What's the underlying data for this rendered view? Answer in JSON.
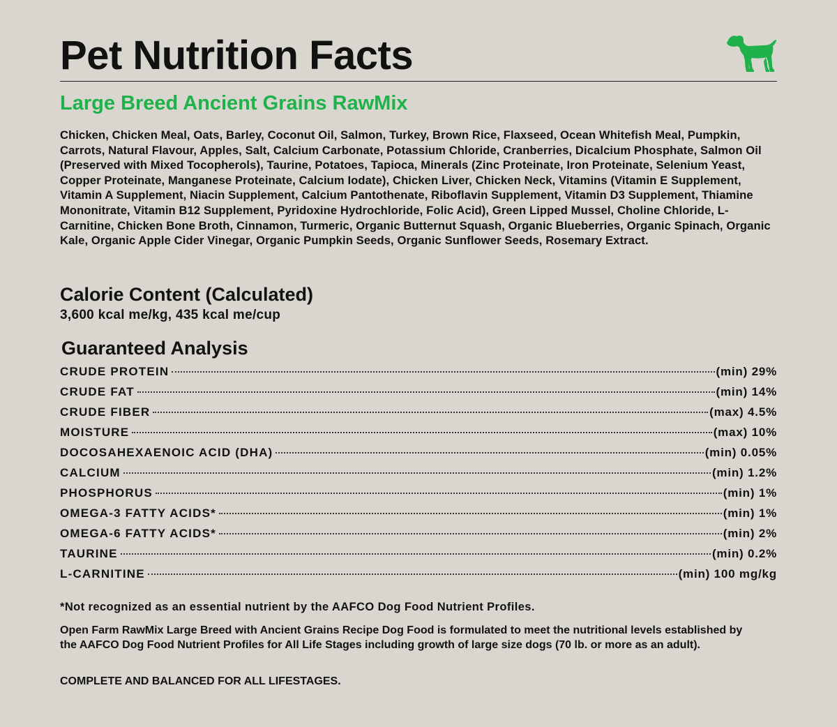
{
  "title": "Pet Nutrition Facts",
  "brand_color": "#1fb24a",
  "icon": "dog-icon",
  "product_name": "Large Breed Ancient Grains RawMix",
  "ingredients": "Chicken, Chicken Meal, Oats, Barley, Coconut Oil, Salmon, Turkey, Brown Rice, Flaxseed, Ocean Whitefish Meal, Pumpkin, Carrots, Natural Flavour, Apples, Salt, Calcium Carbonate, Potassium Chloride, Cranberries, Dicalcium Phosphate, Salmon Oil (Preserved with Mixed Tocopherols), Taurine, Potatoes, Tapioca, Minerals (Zinc Proteinate, Iron Proteinate, Selenium Yeast, Copper Proteinate, Manganese Proteinate, Calcium Iodate), Chicken Liver, Chicken Neck, Vitamins (Vitamin E Supplement, Vitamin A Supplement, Niacin Supplement, Calcium Pantothenate, Riboflavin Supplement, Vitamin D3 Supplement, Thiamine Mononitrate, Vitamin B12 Supplement, Pyridoxine Hydrochloride, Folic Acid), Green Lipped Mussel, Choline Chloride, L-Carnitine, Chicken Bone Broth, Cinnamon, Turmeric, Organic Butternut Squash, Organic Blueberries, Organic Spinach, Organic Kale, Organic Apple Cider Vinegar, Organic Pumpkin Seeds, Organic Sunflower Seeds, Rosemary Extract.",
  "calorie": {
    "heading": "Calorie Content (Calculated)",
    "value": "3,600 kcal me/kg, 435 kcal me/cup"
  },
  "guaranteed_analysis": {
    "heading": "Guaranteed Analysis",
    "rows": [
      {
        "name": "CRUDE PROTEIN",
        "value": "(min) 29%"
      },
      {
        "name": "CRUDE FAT",
        "value": "(min) 14%"
      },
      {
        "name": "CRUDE FIBER",
        "value": "(max) 4.5%"
      },
      {
        "name": "MOISTURE",
        "value": "(max) 10%"
      },
      {
        "name": "DOCOSAHEXAENOIC ACID (DHA)",
        "value": "(min) 0.05%"
      },
      {
        "name": "CALCIUM",
        "value": "(min) 1.2%"
      },
      {
        "name": "PHOSPHORUS",
        "value": "(min) 1%"
      },
      {
        "name": "OMEGA-3 FATTY ACIDS*",
        "value": "(min) 1%"
      },
      {
        "name": "OMEGA-6 FATTY ACIDS*",
        "value": "(min) 2%"
      },
      {
        "name": "TAURINE",
        "value": "(min) 0.2%"
      },
      {
        "name": "L-CARNITINE",
        "value": "(min) 100 mg/kg"
      }
    ]
  },
  "footnote": "*Not recognized as an essential nutrient by the AAFCO Dog Food Nutrient Profiles.",
  "statement": "Open Farm RawMix Large Breed with Ancient Grains Recipe Dog Food is formulated to meet the nutritional levels established by the AAFCO Dog Food Nutrient Profiles for All Life Stages including growth of large size dogs (70 lb. or more as an adult).",
  "complete_text": "COMPLETE AND BALANCED FOR ALL LIFESTAGES."
}
